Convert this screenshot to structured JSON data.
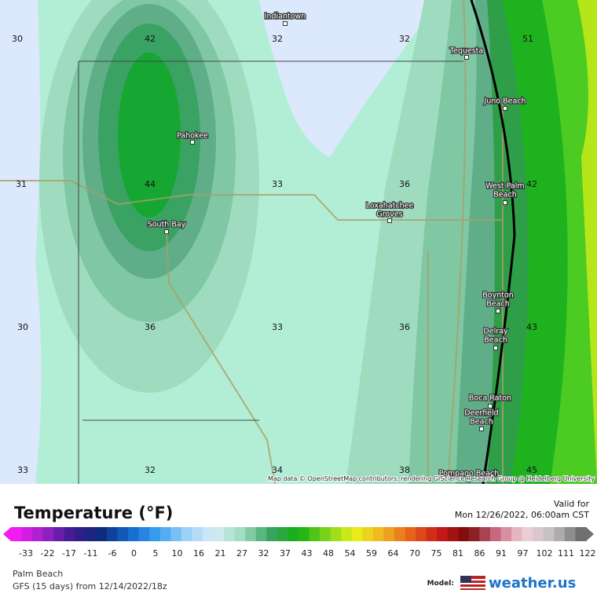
{
  "map": {
    "grid_values": [
      "30",
      "42",
      "32",
      "32",
      "51",
      "31",
      "44",
      "33",
      "36",
      "42",
      "30",
      "36",
      "33",
      "36",
      "43",
      "33",
      "32",
      "34",
      "38",
      "45"
    ],
    "places": [
      [
        "Indiantown"
      ],
      [
        "Tequesta"
      ],
      [
        "Juno Beach"
      ],
      [
        "Pahokee"
      ],
      [
        "West Palm",
        "Beach"
      ],
      [
        "Loxahatchee",
        "Groves"
      ],
      [
        "South Bay"
      ],
      [
        "Boynton",
        "Beach"
      ],
      [
        "Delray",
        "Beach"
      ],
      [
        "Boca Raton"
      ],
      [
        "Deerfield",
        "Beach"
      ],
      [
        "Pompano Beach"
      ]
    ],
    "attribution": "Map data © OpenStreetMap contributors, rendering GIScience Research Group @ Heidelberg University"
  },
  "legend": {
    "title": "Temperature (°F)",
    "valid_label": "Valid for",
    "valid_time": "Mon 12/26/2022, 06:00am CST",
    "ticks": [
      "-33",
      "-22",
      "-17",
      "-11",
      "-6",
      "0",
      "5",
      "10",
      "16",
      "21",
      "27",
      "32",
      "37",
      "43",
      "48",
      "54",
      "59",
      "64",
      "70",
      "75",
      "81",
      "86",
      "91",
      "97",
      "102",
      "111",
      "122"
    ]
  },
  "footer": {
    "location": "Palm Beach",
    "model_run": "GFS (15 days) from 12/14/2022/18z",
    "model_label": "Model:",
    "brand": "weather.us"
  }
}
